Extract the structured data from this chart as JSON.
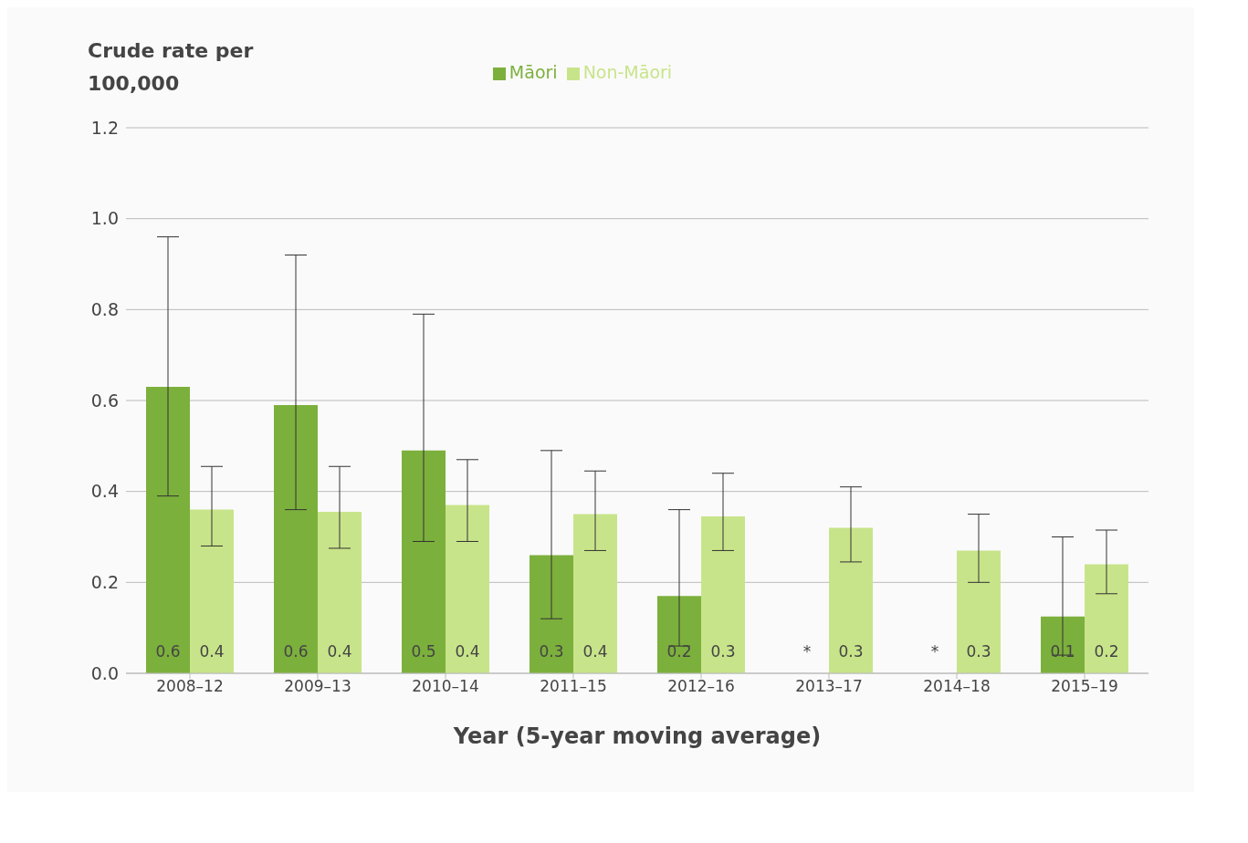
{
  "chart_data": {
    "type": "bar",
    "ylabel": "Crude rate per 100,000",
    "xlabel": "Year (5-year moving average)",
    "categories": [
      "2008–12",
      "2009–13",
      "2010–14",
      "2011–15",
      "2012–16",
      "2013–17",
      "2014–18",
      "2015–19"
    ],
    "series": [
      {
        "name": "Māori",
        "color": "#7cb03c",
        "values": [
          0.63,
          0.59,
          0.49,
          0.26,
          0.17,
          null,
          null,
          0.125
        ],
        "errors": [
          [
            0.39,
            0.96
          ],
          [
            0.36,
            0.92
          ],
          [
            0.29,
            0.79
          ],
          [
            0.12,
            0.49
          ],
          [
            0.06,
            0.36
          ],
          null,
          null,
          [
            0.04,
            0.3
          ]
        ],
        "value_labels": [
          "0.6",
          "0.6",
          "0.5",
          "0.3",
          "0.2",
          "*",
          "*",
          "0.1"
        ]
      },
      {
        "name": "Non-Māori",
        "color": "#c8e48a",
        "values": [
          0.36,
          0.355,
          0.37,
          0.35,
          0.345,
          0.32,
          0.27,
          0.24
        ],
        "errors": [
          [
            0.28,
            0.455
          ],
          [
            0.275,
            0.455
          ],
          [
            0.29,
            0.47
          ],
          [
            0.27,
            0.445
          ],
          [
            0.27,
            0.44
          ],
          [
            0.245,
            0.41
          ],
          [
            0.2,
            0.35
          ],
          [
            0.175,
            0.315
          ]
        ],
        "value_labels": [
          "0.4",
          "0.4",
          "0.4",
          "0.4",
          "0.3",
          "0.3",
          "0.3",
          "0.2"
        ]
      }
    ],
    "ylim": [
      0,
      1.2
    ],
    "yticks": [
      {
        "value": 0,
        "label": "0.0"
      },
      {
        "value": 0.2,
        "label": "0.2"
      },
      {
        "value": 0.4,
        "label": "0.4"
      },
      {
        "value": 0.6,
        "label": "0.6"
      },
      {
        "value": 0.8,
        "label": "0.8"
      },
      {
        "value": 1,
        "label": "1.0"
      },
      {
        "value": 1.2,
        "label": "1.2"
      }
    ],
    "grid": "y",
    "legend": "top"
  }
}
